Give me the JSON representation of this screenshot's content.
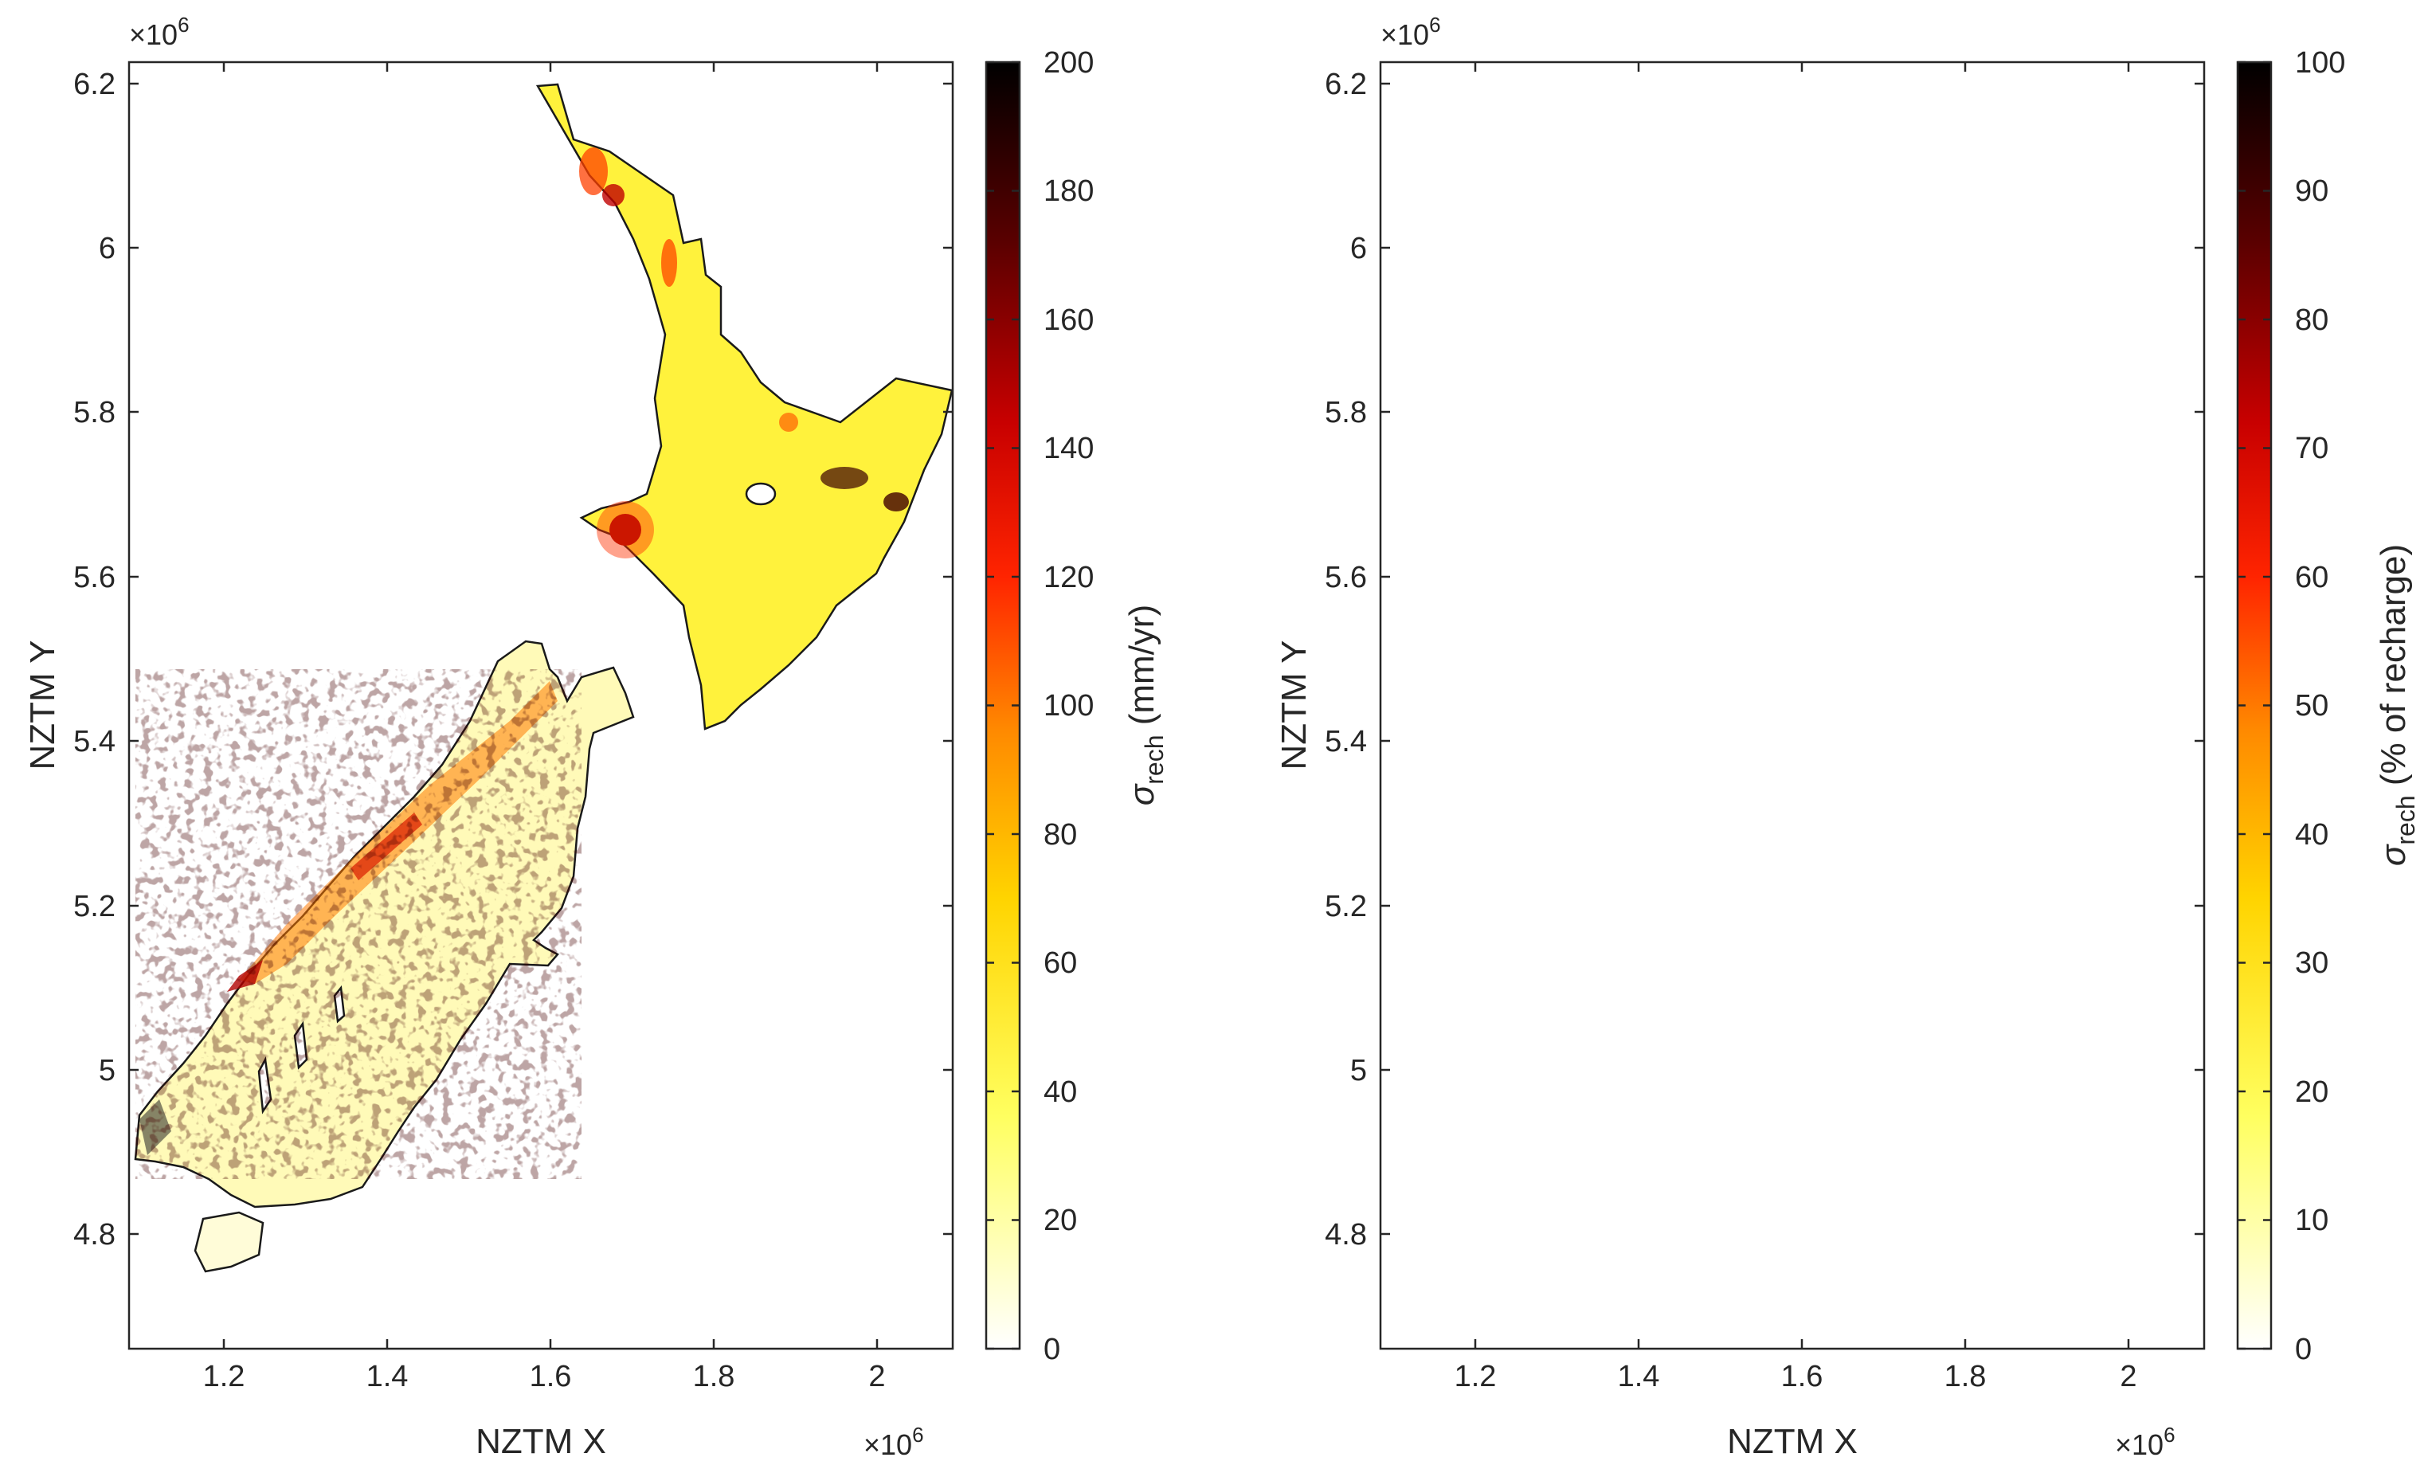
{
  "panels": [
    {
      "x_label": "NZTM X",
      "y_label": "NZTM Y",
      "x_multiplier": "×10",
      "x_multiplier_exp": "6",
      "y_multiplier": "×10",
      "y_multiplier_exp": "6",
      "x_ticks": [
        "1.2",
        "1.4",
        "1.6",
        "1.8",
        "2"
      ],
      "y_ticks": [
        "6.2",
        "6",
        "5.8",
        "5.6",
        "5.4",
        "5.2",
        "5",
        "4.8"
      ],
      "colorbar": {
        "label_symbol": "σ",
        "label_sub": "rech",
        "label_units": " (mm/yr)",
        "ticks": [
          "200",
          "180",
          "160",
          "140",
          "120",
          "100",
          "80",
          "60",
          "40",
          "20",
          "0"
        ],
        "range": [
          0,
          200
        ]
      }
    },
    {
      "x_label": "NZTM X",
      "y_label": "NZTM Y",
      "x_multiplier": "×10",
      "x_multiplier_exp": "6",
      "y_multiplier": "×10",
      "y_multiplier_exp": "6",
      "x_ticks": [
        "1.2",
        "1.4",
        "1.6",
        "1.8",
        "2"
      ],
      "y_ticks": [
        "6.2",
        "6",
        "5.8",
        "5.6",
        "5.4",
        "5.2",
        "5",
        "4.8"
      ],
      "colorbar": {
        "label_symbol": "σ",
        "label_sub": "rech",
        "label_units": " (% of recharge)",
        "ticks": [
          "100",
          "90",
          "80",
          "70",
          "60",
          "50",
          "40",
          "30",
          "20",
          "10",
          "0"
        ],
        "range": [
          0,
          100
        ]
      }
    }
  ],
  "colormap": "hot (reversed): white → yellow → orange → red → black",
  "colors": {
    "axis": "#262626",
    "coast": "#1a1a1a"
  }
}
